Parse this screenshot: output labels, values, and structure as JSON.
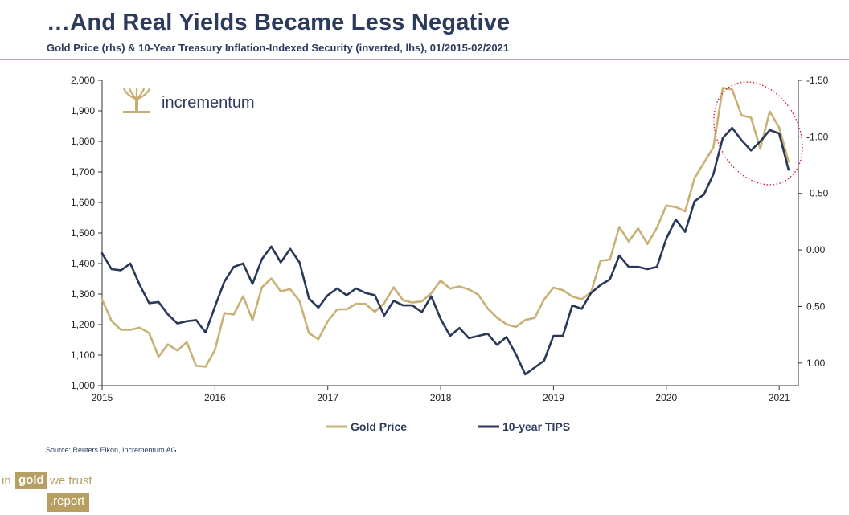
{
  "header": {
    "title": "…And Real Yields Became Less Negative",
    "subtitle": "Gold Price (rhs) & 10-Year Treasury Inflation-Indexed Security (inverted, lhs), 01/2015-02/2021"
  },
  "logo": {
    "text": "incrementum",
    "icon": "tree-icon"
  },
  "source": "Source: Reuters Eikon, Incrementum AG",
  "brand": {
    "in": "in",
    "gold": "gold",
    "we_trust": "we trust",
    "report": ".report"
  },
  "colors": {
    "gold": "#c8b175",
    "tips": "#293758",
    "annotation": "#cc2233",
    "axis": "#2c3a5c"
  },
  "chart_data": {
    "type": "line",
    "title": "…And Real Yields Became Less Negative",
    "x_start": 2015.0,
    "x_step_months": 1,
    "xlim": [
      2015,
      2021.17
    ],
    "x_ticks": [
      "2015",
      "2016",
      "2017",
      "2018",
      "2019",
      "2020",
      "2021"
    ],
    "left_axis": {
      "ylim": [
        1000,
        2000
      ],
      "ticks": [
        "1,000",
        "1,100",
        "1,200",
        "1,300",
        "1,400",
        "1,500",
        "1,600",
        "1,700",
        "1,800",
        "1,900",
        "2,000"
      ]
    },
    "right_axis": {
      "ylim": [
        1.2,
        -1.5
      ],
      "inverted": true,
      "ticks": [
        "-1.50",
        "-1.00",
        "-0.50",
        "0.00",
        "0.50",
        "1.00"
      ]
    },
    "series": [
      {
        "name": "Gold Price",
        "axis": "gold-scale",
        "values": [
          1282,
          1212,
          1183,
          1183,
          1190,
          1172,
          1095,
          1135,
          1115,
          1142,
          1065,
          1062,
          1117,
          1238,
          1233,
          1293,
          1215,
          1322,
          1351,
          1309,
          1316,
          1277,
          1172,
          1152,
          1211,
          1250,
          1250,
          1268,
          1268,
          1242,
          1270,
          1322,
          1280,
          1272,
          1276,
          1303,
          1344,
          1318,
          1325,
          1315,
          1298,
          1253,
          1223,
          1201,
          1192,
          1215,
          1222,
          1282,
          1321,
          1313,
          1292,
          1283,
          1306,
          1409,
          1413,
          1520,
          1472,
          1515,
          1464,
          1517,
          1590,
          1585,
          1571,
          1680,
          1730,
          1780,
          1975,
          1970,
          1885,
          1878,
          1776,
          1898,
          1846,
          1734
        ]
      },
      {
        "name": "10-year TIPS",
        "axis": "real-yield-inverted",
        "values": [
          0.03,
          0.17,
          0.18,
          0.12,
          0.31,
          0.47,
          0.46,
          0.57,
          0.65,
          0.63,
          0.62,
          0.73,
          0.5,
          0.28,
          0.15,
          0.12,
          0.3,
          0.08,
          -0.03,
          0.11,
          -0.01,
          0.11,
          0.43,
          0.51,
          0.4,
          0.34,
          0.4,
          0.34,
          0.38,
          0.4,
          0.58,
          0.45,
          0.49,
          0.49,
          0.55,
          0.41,
          0.61,
          0.76,
          0.69,
          0.78,
          0.76,
          0.74,
          0.84,
          0.77,
          0.92,
          1.1,
          1.04,
          0.98,
          0.76,
          0.76,
          0.49,
          0.52,
          0.38,
          0.31,
          0.26,
          0.05,
          0.15,
          0.15,
          0.17,
          0.15,
          -0.1,
          -0.27,
          -0.16,
          -0.43,
          -0.49,
          -0.67,
          -0.99,
          -1.08,
          -0.97,
          -0.88,
          -0.96,
          -1.06,
          -1.03,
          -0.71
        ]
      }
    ],
    "legend": {
      "position": "bottom",
      "entries": [
        "Gold Price",
        "10-year TIPS"
      ]
    },
    "annotation": "dotted ellipse highlighting 2020-2021 peak"
  }
}
